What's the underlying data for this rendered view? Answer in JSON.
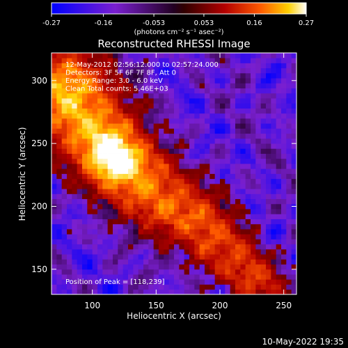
{
  "colorbar": {
    "ticks": [
      "-0.27",
      "-0.16",
      "-0.053",
      "0.053",
      "0.16",
      "0.27"
    ],
    "range": [
      -0.27,
      0.27
    ],
    "units_label": "(photons cm⁻² s⁻¹ asec⁻²)"
  },
  "chart_data": {
    "type": "heatmap",
    "title": "Reconstructed RHESSI Image",
    "xlabel": "Heliocentric X (arcsec)",
    "ylabel": "Heliocentric Y (arcsec)",
    "xlim": [
      68,
      260
    ],
    "ylim": [
      130,
      322
    ],
    "x_ticks": [
      100,
      150,
      200,
      250
    ],
    "y_ticks": [
      150,
      200,
      250,
      300
    ],
    "info_lines": [
      "12-May-2012 02:56:12.000 to 02:57:24.000",
      "Detectors: 3F 5F 6F 7F 8F, Att 0",
      "Energy Range: 3.0 - 6.0 keV",
      "Clean    Total counts: 5.46E+03"
    ],
    "peak_label": "Position of Peak = [118,239]",
    "peak_position": [
      118,
      239
    ],
    "emission_source": {
      "shape": "elongated ridge from upper-left to lower-right",
      "ridge_points": [
        [
          80,
          290
        ],
        [
          100,
          262
        ],
        [
          118,
          239
        ],
        [
          150,
          210
        ],
        [
          180,
          190
        ],
        [
          205,
          165
        ],
        [
          230,
          140
        ]
      ],
      "peak_value": 0.27
    }
  },
  "footer": {
    "timestamp": "10-May-2022 19:35"
  }
}
